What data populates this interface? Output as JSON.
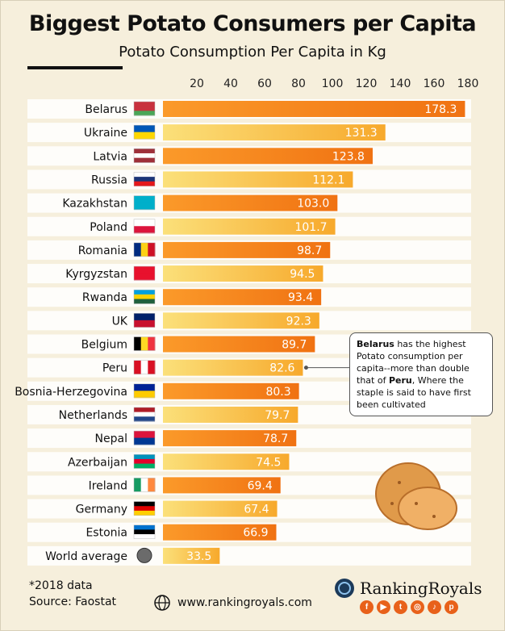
{
  "title": "Biggest Potato Consumers per Capita",
  "subtitle": "Potato Consumption Per Capita in Kg",
  "footnote_line1": "*2018 data",
  "footnote_line2": "Source: Faostat",
  "website": "www.rankingroyals.com",
  "brand": "RankingRoyals",
  "socials": [
    "facebook-icon",
    "youtube-icon",
    "twitter-icon",
    "instagram-icon",
    "tiktok-icon",
    "pinterest-icon"
  ],
  "note": {
    "bold1": "Belarus",
    "text1": " has the highest Potato consumption per capita--more than double that of ",
    "bold2": "Peru",
    "text2": ", Where the  staple is said to have first been cultivated"
  },
  "colors": {
    "background": "#f6efdc",
    "bar_dark": "#f07d14",
    "bar_light": "#f9c14a",
    "row_band": "#ffffff"
  },
  "chart_data": {
    "type": "bar",
    "orientation": "horizontal",
    "categories": [
      "Belarus",
      "Ukraine",
      "Latvia",
      "Russia",
      "Kazakhstan",
      "Poland",
      "Romania",
      "Kyrgyzstan",
      "Rwanda",
      "UK",
      "Belgium",
      "Peru",
      "Bosnia-Herzegovina",
      "Netherlands",
      "Nepal",
      "Azerbaijan",
      "Ireland",
      "Germany",
      "Estonia",
      "World average"
    ],
    "values": [
      178.3,
      131.3,
      123.8,
      112.1,
      103.0,
      101.7,
      98.7,
      94.5,
      93.4,
      92.3,
      89.7,
      82.6,
      80.3,
      79.7,
      78.7,
      74.5,
      69.4,
      67.4,
      66.9,
      33.5
    ],
    "value_labels": [
      "178.3",
      "131.3",
      "123.8",
      "112.1",
      "103.0",
      "101.7",
      "98.7",
      "94.5",
      "93.4",
      "92.3",
      "89.7",
      "82.6",
      "80.3",
      "79.7",
      "78.7",
      "74.5",
      "69.4",
      "67.4",
      "66.9",
      "33.5"
    ],
    "xticks": [
      "20",
      "40",
      "60",
      "80",
      "100",
      "120",
      "140",
      "160",
      "180"
    ],
    "xlim": [
      0,
      180
    ],
    "grid": false,
    "legend": "none"
  }
}
